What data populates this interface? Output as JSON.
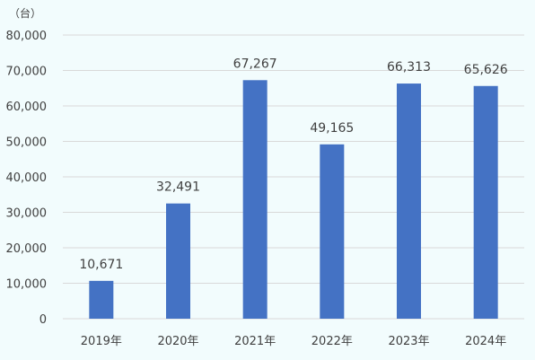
{
  "chart_data": {
    "type": "bar",
    "unit_label": "（台）",
    "categories": [
      "2019年",
      "2020年",
      "2021年",
      "2022年",
      "2023年",
      "2024年"
    ],
    "values": [
      10671,
      32491,
      67267,
      49165,
      66313,
      65626
    ],
    "data_labels": [
      "10,671",
      "32,491",
      "67,267",
      "49,165",
      "66,313",
      "65,626"
    ],
    "ylim": [
      0,
      80000
    ],
    "yticks": [
      0,
      10000,
      20000,
      30000,
      40000,
      50000,
      60000,
      70000,
      80000
    ],
    "ytick_labels": [
      "0",
      "10,000",
      "20,000",
      "30,000",
      "40,000",
      "50,000",
      "60,000",
      "70,000",
      "80,000"
    ],
    "bar_color": "#4472c4",
    "grid": true,
    "legend": "none"
  }
}
